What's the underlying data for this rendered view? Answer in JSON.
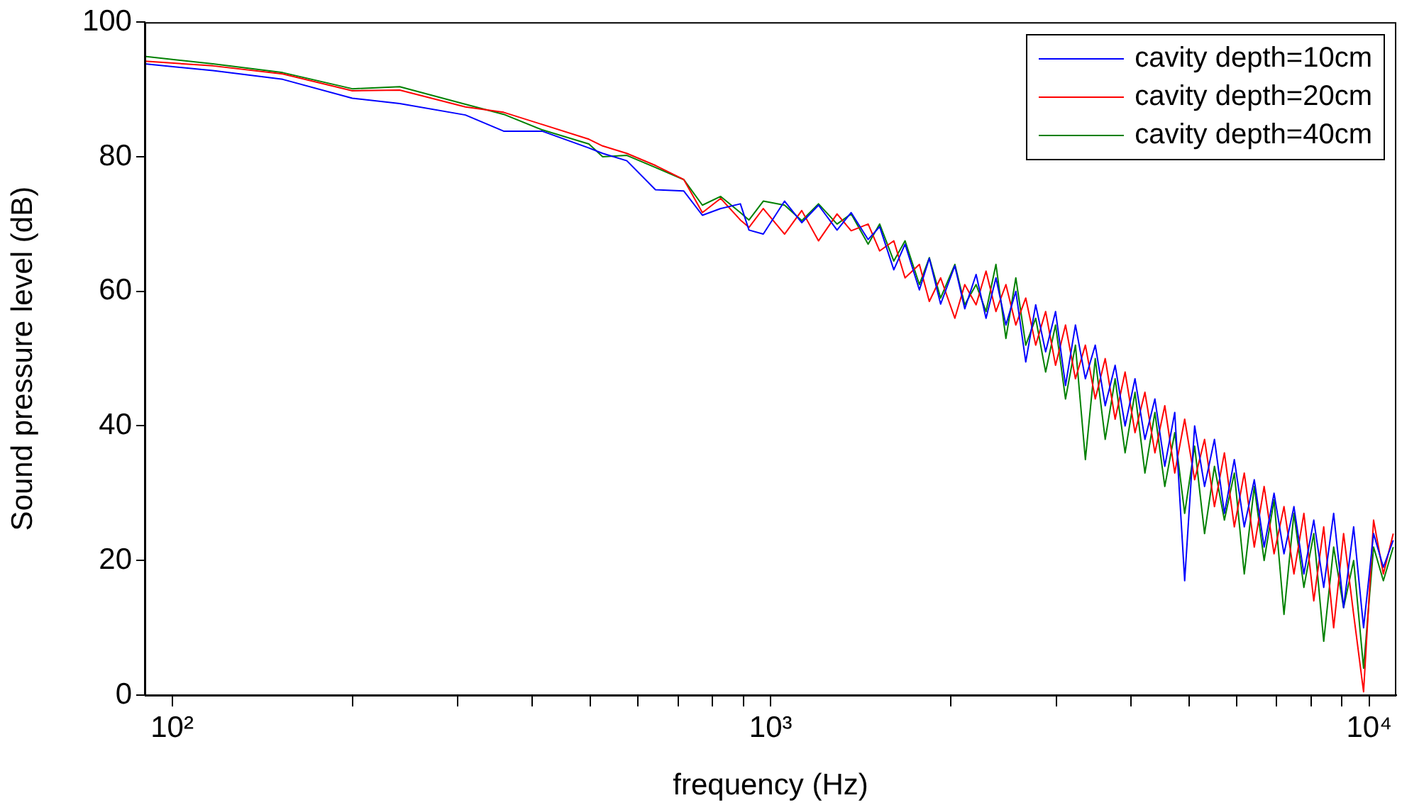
{
  "chart_data": {
    "type": "line",
    "xlabel": "frequency (Hz)",
    "ylabel": "Sound pressure level (dB)",
    "log": "x",
    "legend": "top right",
    "marker": "none",
    "xlim": [
      90,
      11100
    ],
    "xticks": [
      {
        "value": 100,
        "label": "10²"
      },
      {
        "value": 200,
        "label": null
      },
      {
        "value": 300,
        "label": null
      },
      {
        "value": 400,
        "label": null
      },
      {
        "value": 500,
        "label": null
      },
      {
        "value": 600,
        "label": null
      },
      {
        "value": 700,
        "label": null
      },
      {
        "value": 800,
        "label": null
      },
      {
        "value": 900,
        "label": null
      },
      {
        "value": 1000,
        "label": "10³"
      },
      {
        "value": 2000,
        "label": null
      },
      {
        "value": 3000,
        "label": null
      },
      {
        "value": 4000,
        "label": null
      },
      {
        "value": 5000,
        "label": null
      },
      {
        "value": 6000,
        "label": null
      },
      {
        "value": 7000,
        "label": null
      },
      {
        "value": 8000,
        "label": null
      },
      {
        "value": 9000,
        "label": null
      },
      {
        "value": 10000,
        "label": "10⁴"
      }
    ],
    "ylim": [
      0,
      100
    ],
    "yticks": [
      0,
      20,
      40,
      60,
      80,
      100
    ],
    "x": [
      90,
      117,
      153,
      200,
      240,
      309,
      358,
      415,
      497,
      524,
      575,
      642,
      716,
      769,
      825,
      890,
      920,
      972,
      1055,
      1127,
      1202,
      1291,
      1363,
      1455,
      1521,
      1606,
      1677,
      1772,
      1841,
      1923,
      2031,
      2110,
      2204,
      2290,
      2379,
      2472,
      2568,
      2668,
      2772,
      2880,
      2992,
      3109,
      3230,
      3356,
      3486,
      3622,
      3763,
      3910,
      4062,
      4220,
      4385,
      4555,
      4733,
      4917,
      5109,
      5308,
      5514,
      5729,
      5952,
      6184,
      6427,
      6675,
      6935,
      7205,
      7486,
      7778,
      8080,
      8395,
      8722,
      9062,
      9419,
      9786,
      10170,
      10560,
      10970
    ],
    "series": [
      {
        "name": "cavity depth=10cm",
        "color": "#0000ff",
        "values": [
          93.8,
          92.8,
          91.5,
          88.7,
          87.9,
          86.2,
          83.8,
          83.8,
          81.3,
          80.5,
          79.4,
          75.1,
          74.9,
          71.3,
          72.3,
          73,
          69.1,
          68.5,
          73.4,
          70.2,
          72.8,
          69.1,
          71.7,
          67.7,
          69.6,
          63.2,
          67,
          60.2,
          64.9,
          58.1,
          63.8,
          57.4,
          62.5,
          56,
          62,
          55,
          60,
          49.5,
          58,
          51,
          57,
          46,
          55,
          47,
          52,
          43,
          49,
          40,
          47,
          38,
          44,
          34,
          42,
          17,
          40,
          31,
          38,
          27,
          35,
          25,
          32,
          22,
          30,
          21,
          28,
          18,
          26,
          16,
          27,
          13,
          25,
          10,
          24,
          19,
          23
        ]
      },
      {
        "name": "cavity depth=20cm",
        "color": "#ff0000",
        "values": [
          94.2,
          93.5,
          92.3,
          89.8,
          89.9,
          87.4,
          86.6,
          84.8,
          82.6,
          81.6,
          80.5,
          78.7,
          76.6,
          71.7,
          73.8,
          70.6,
          69.5,
          72.3,
          68.5,
          72,
          67.5,
          71.5,
          69,
          70,
          66,
          67.5,
          62,
          64,
          58.5,
          62,
          56,
          61,
          58,
          63,
          57,
          61,
          55,
          59,
          52,
          57,
          49,
          55,
          47,
          52,
          44,
          50,
          41,
          48,
          39,
          45,
          36,
          43,
          33,
          41,
          32,
          38,
          28,
          36,
          25,
          33,
          22,
          31,
          21,
          28,
          18,
          27,
          14,
          25,
          10,
          24,
          12,
          0.5,
          26,
          18,
          24
        ]
      },
      {
        "name": "cavity depth=40cm",
        "color": "#008000",
        "values": [
          94.9,
          93.8,
          92.5,
          90.1,
          90.4,
          87.8,
          86.3,
          84,
          81.9,
          80,
          80.2,
          78.4,
          76.6,
          72.8,
          74.1,
          71.7,
          70.6,
          73.4,
          72.8,
          70.5,
          73,
          70,
          71.5,
          67,
          70,
          64.5,
          67.5,
          61,
          65,
          59,
          64,
          58,
          61,
          57,
          64,
          53,
          62,
          52,
          56,
          48,
          55,
          44,
          52,
          35,
          50,
          38,
          47,
          36,
          45,
          33,
          42,
          31,
          39,
          27,
          37,
          24,
          34,
          26,
          33,
          18,
          31,
          20,
          29,
          12,
          27,
          16,
          24,
          8,
          22,
          13,
          20,
          4,
          22,
          17,
          22
        ]
      }
    ]
  }
}
